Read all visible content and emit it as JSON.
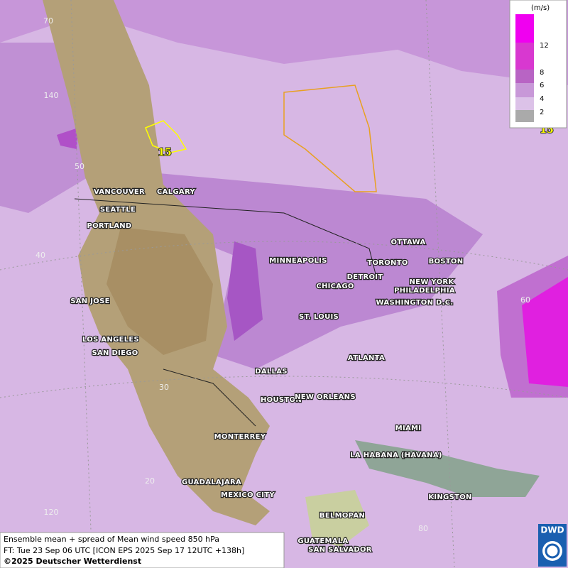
{
  "map": {
    "cities": [
      "VANCOUVER",
      "CALGARY",
      "SEATTLE",
      "PORTLAND",
      "SAN JOSE",
      "LOS ANGELES",
      "SAN DIEGO",
      "MINNEAPOLIS",
      "CHICAGO",
      "DETROIT",
      "TORONTO",
      "OTTAWA",
      "BOSTON",
      "NEW YORK",
      "PHILADELPHIA",
      "WASHINGTON D.C.",
      "ST. LOUIS",
      "ATLANTA",
      "DALLAS",
      "HOUSTON",
      "NEW ORLEANS",
      "MIAMI",
      "MONTERREY",
      "LA HABANA (HAVANA)",
      "GUADALAJARA",
      "MEXICO CITY",
      "KINGSTON",
      "BELMOPAN",
      "GUATEMALA",
      "SAN SALVADOR"
    ],
    "graticule_labels": [
      70,
      140,
      50,
      40,
      30,
      20,
      120,
      60,
      80
    ],
    "contour_labels": [
      15,
      15
    ]
  },
  "legend": {
    "unit": "(m/s)",
    "ticks": [
      12,
      8,
      6,
      4,
      2
    ]
  },
  "footer": {
    "lines": [
      "Ensemble mean + spread of Mean wind speed 850 hPa",
      "FT: Tue 23 Sep 06 UTC [ICON EPS 2025 Sep 17 12UTC +138h]"
    ],
    "copyright": "©2025 Deutscher Wetterdienst"
  },
  "logo": "DWD"
}
